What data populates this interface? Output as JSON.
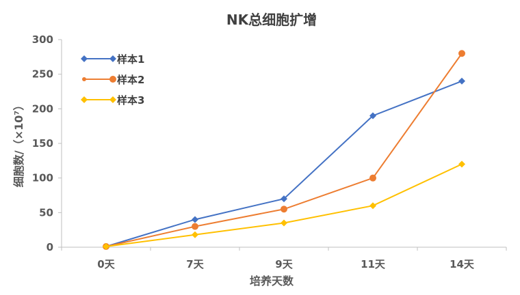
{
  "chart_data": {
    "type": "line",
    "title": "NK总细胞扩增",
    "xlabel": "培养天数",
    "ylabel": "细胞数/（×10⁷）",
    "categories": [
      "0天",
      "7天",
      "9天",
      "11天",
      "14天"
    ],
    "ylim": [
      0,
      300
    ],
    "yticks": [
      "0",
      "50",
      "100",
      "150",
      "200",
      "250",
      "300"
    ],
    "legend_position": "top-left",
    "grid": false,
    "series": [
      {
        "name": "样本1",
        "values": [
          1,
          40,
          70,
          190,
          240
        ],
        "color": "#4472C4",
        "marker": "diamond"
      },
      {
        "name": "样本2",
        "values": [
          1,
          30,
          55,
          100,
          280
        ],
        "color": "#ED7D31",
        "marker": "circle"
      },
      {
        "name": "样本3",
        "values": [
          1,
          18,
          35,
          60,
          120
        ],
        "color": "#FFC000",
        "marker": "diamond"
      }
    ]
  }
}
